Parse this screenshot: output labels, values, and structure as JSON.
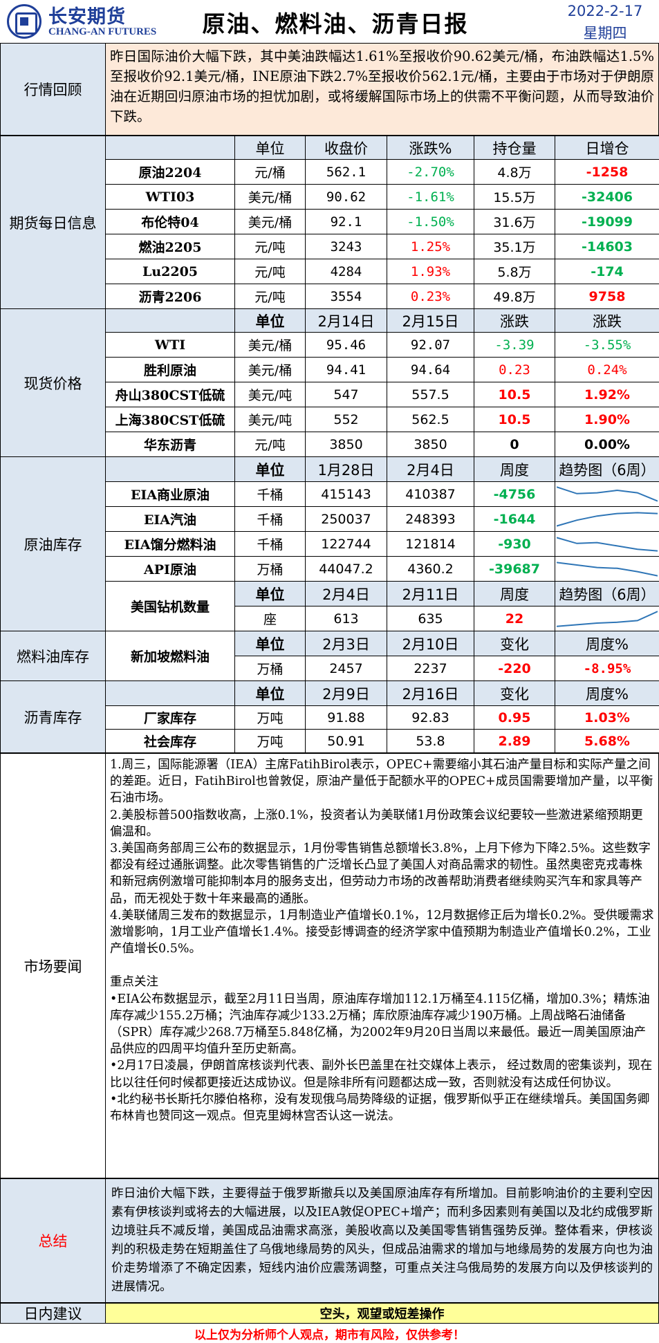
{
  "header": {
    "company_cn": "长安期货",
    "company_en": "CHANG-AN FUTURES",
    "title": "原油、燃料油、沥青日报",
    "date": "2022-2-17",
    "weekday": "星期四"
  },
  "review": {
    "label": "行情回顾",
    "text": "昨日国际油价大幅下跌，其中美油跌幅达1.61%至报收价90.62美元/桶，布油跌幅达1.5%至报收价92.1美元/桶，INE原油下跌2.7%至报收价562.1元/桶，主要由于市场对于伊朗原油在近期回归原油市场的担忧加剧，或将缓解国际市场上的供需不平衡问题，从而导致油价下跌。"
  },
  "futures": {
    "label": "期货每日信息",
    "headers": [
      "单位",
      "收盘价",
      "涨跌%",
      "持仓量",
      "日增仓"
    ],
    "rows": [
      {
        "name": "原油2204",
        "unit": "元/桶",
        "close": "562.1",
        "chg": "-2.70%",
        "oi": "4.8万",
        "doi": "-1258",
        "chg_color": "green",
        "doi_color": "red"
      },
      {
        "name": "WTI03",
        "unit": "美元/桶",
        "close": "90.62",
        "chg": "-1.61%",
        "oi": "15.5万",
        "doi": "-32406",
        "chg_color": "green",
        "doi_color": "green"
      },
      {
        "name": "布伦特04",
        "unit": "美元/桶",
        "close": "92.1",
        "chg": "-1.50%",
        "oi": "31.6万",
        "doi": "-19099",
        "chg_color": "green",
        "doi_color": "green"
      },
      {
        "name": "燃油2205",
        "unit": "元/吨",
        "close": "3243",
        "chg": "1.25%",
        "oi": "35.1万",
        "doi": "-14603",
        "chg_color": "red",
        "doi_color": "green"
      },
      {
        "name": "Lu2205",
        "unit": "元/吨",
        "close": "4284",
        "chg": "1.93%",
        "oi": "5.8万",
        "doi": "-174",
        "chg_color": "red",
        "doi_color": "green"
      },
      {
        "name": "沥青2206",
        "unit": "元/吨",
        "close": "3554",
        "chg": "0.23%",
        "oi": "49.8万",
        "doi": "9758",
        "chg_color": "red",
        "doi_color": "red"
      }
    ]
  },
  "spot": {
    "label": "现货价格",
    "headers": [
      "单位",
      "2月14日",
      "2月15日",
      "涨跌",
      "涨跌"
    ],
    "rows": [
      {
        "name": "WTI",
        "unit": "美元/桶",
        "d1": "95.46",
        "d2": "92.07",
        "chg": "-3.39",
        "pct": "-3.55%",
        "color": "green"
      },
      {
        "name": "胜利原油",
        "unit": "美元/桶",
        "d1": "94.41",
        "d2": "94.64",
        "chg": "0.23",
        "pct": "0.24%",
        "color": "red"
      },
      {
        "name": "舟山380CST低硫",
        "unit": "美元/吨",
        "d1": "547",
        "d2": "557.5",
        "chg": "10.5",
        "pct": "1.92%",
        "color": "red"
      },
      {
        "name": "上海380CST低硫",
        "unit": "美元/吨",
        "d1": "552",
        "d2": "562.5",
        "chg": "10.5",
        "pct": "1.90%",
        "color": "red"
      },
      {
        "name": "华东沥青",
        "unit": "元/吨",
        "d1": "3850",
        "d2": "3850",
        "chg": "0",
        "pct": "0.00%",
        "color": "black"
      }
    ]
  },
  "inventory": {
    "label": "原油库存",
    "headers": [
      "单位",
      "1月28日",
      "2月4日",
      "周度",
      "趋势图（6周）"
    ],
    "rows": [
      {
        "name": "EIA商业原油",
        "unit": "千桶",
        "d1": "415143",
        "d2": "410387",
        "chg": "-4756",
        "trend": [
          0.95,
          0.55,
          0.6,
          0.75,
          0.6,
          0.1
        ]
      },
      {
        "name": "EIA汽油",
        "unit": "千桶",
        "d1": "250037",
        "d2": "248393",
        "chg": "-1644",
        "trend": [
          0.1,
          0.45,
          0.7,
          0.85,
          0.9,
          0.85
        ]
      },
      {
        "name": "EIA馏分燃料油",
        "unit": "千桶",
        "d1": "122744",
        "d2": "121814",
        "chg": "-930",
        "trend": [
          0.9,
          0.55,
          0.6,
          0.4,
          0.2,
          0.1
        ]
      },
      {
        "name": "API原油",
        "unit": "万桶",
        "d1": "44047.2",
        "d2": "4360.2",
        "chg": "-39687",
        "trend": [
          0.9,
          0.75,
          0.6,
          0.55,
          0.35,
          0.1
        ]
      }
    ],
    "rig": {
      "name": "美国钻机数量",
      "headers": [
        "单位",
        "2月4日",
        "2月11日",
        "周度",
        "趋势图（6周）"
      ],
      "unit": "座",
      "d1": "613",
      "d2": "635",
      "chg": "22",
      "trend": [
        0.05,
        0.15,
        0.25,
        0.3,
        0.4,
        0.95
      ]
    }
  },
  "fuel_inventory": {
    "label": "燃料油库存",
    "name": "新加坡燃料油",
    "headers": [
      "单位",
      "2月3日",
      "2月10日",
      "变化",
      "周度%"
    ],
    "unit": "万桶",
    "d1": "2457",
    "d2": "2237",
    "chg": "-220",
    "pct": "-8.95%"
  },
  "asphalt_inventory": {
    "label": "沥青库存",
    "headers": [
      "单位",
      "2月9日",
      "2月16日",
      "变化",
      "周度%"
    ],
    "rows": [
      {
        "name": "厂家库存",
        "unit": "万吨",
        "d1": "91.88",
        "d2": "92.83",
        "chg": "0.95",
        "pct": "1.03%"
      },
      {
        "name": "社会库存",
        "unit": "万吨",
        "d1": "50.91",
        "d2": "53.8",
        "chg": "2.89",
        "pct": "5.68%"
      }
    ]
  },
  "news": {
    "label": "市场要闻",
    "p1": "1.周三，国际能源署（IEA）主席FatihBirol表示，OPEC+需要缩小其石油产量目标和实际产量之间的差距。近日，FatihBirol也曾敦促，原油产量低于配额水平的OPEC+成员国需要增加产量，以平衡石油市场。",
    "p2": "2.美股标普500指数收高，上涨0.1%，投资者认为美联储1月份政策会议纪要较一些激进紧缩预期更偏温和。",
    "p3": "3.美国商务部周三公布的数据显示，1月份零售销售总额增长3.8%，上月下修为下降2.5%。这些数字都没有经过通胀调整。此次零售销售的广泛增长凸显了美国人对商品需求的韧性。虽然奥密克戎毒株和新冠病例激增可能抑制本月的服务支出，但劳动力市场的改善帮助消费者继续购买汽车和家具等产品，而无视处于数十年来最高的通胀。",
    "p4": "4.美联储周三发布的数据显示，1月制造业产值增长0.1%，12月数据修正后为增长0.2%。受供暖需求激增影响，1月工业产值增长1.4%。接受彭博调查的经济学家中值预期为制造业产值增长0.2%，工业产值增长0.5%。",
    "focus_title": "重点关注",
    "f1": "•EIA公布数据显示，截至2月11日当周，原油库存增加112.1万桶至4.115亿桶，增加0.3%；精炼油库存减少155.2万桶；汽油库存减少133.2万桶；库欣原油库存减少190万桶。上周战略石油储备（SPR）库存减少268.7万桶至5.848亿桶，为2002年9月20日当周以来最低。最近一周美国原油产品供应的四周平均值升至历史新高。",
    "f2": "•2月17日凌晨，伊朗首席核谈判代表、副外长巴盖里在社交媒体上表示， 经过数周的密集谈判，现在比以往任何时候都更接近达成协议。但是除非所有问题都达成一致，否则就没有达成任何协议。",
    "f3": "•北约秘书长斯托尔滕伯格称，没有发现俄乌局势降级的证据，俄罗斯似乎正在继续增兵。美国国务卿布林肯也赞同这一观点。但克里姆林宫否认这一说法。"
  },
  "summary": {
    "label": "总结",
    "text": "昨日油价大幅下跌，主要得益于俄罗斯撤兵以及美国原油库存有所增加。目前影响油价的主要利空因素有伊核谈判或将去的大幅进展，以及IEA敦促OPEC+增产；而利多因素则有美国以及北约成俄罗斯边境驻兵不减反增，美国成品油需求高涨，美股收高以及美国零售销售强势反弹。整体看来，伊核谈判的积极走势在短期盖住了乌俄地缘局势的风头，但成品油需求的增加与地缘局势的发展方向也为油价走势增添了不确定因素，短线内油价应震荡调整，可重点关注乌俄局势的发展方向以及伊核谈判的进展情况。"
  },
  "advice": {
    "label": "日内建议",
    "text": "空头，观望或短差操作"
  },
  "disclaimer": "以上仅为分析师个人观点，期市有风险，仅供参考！",
  "colors": {
    "accent": "#1f3f99",
    "label_bg": "#dce6f1",
    "review_bg": "#fde9d9",
    "advice_bg": "#ffff99",
    "up": "#ff0000",
    "down": "#00b050",
    "spark": "#2e75b6"
  }
}
